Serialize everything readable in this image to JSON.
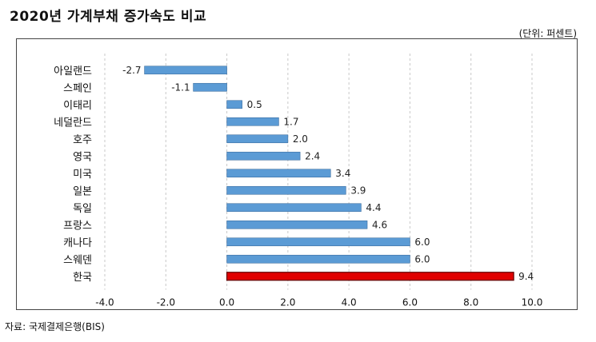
{
  "header": {
    "title": "2020년 가계부채 증가속도 비교",
    "unit": "(단위: 퍼센트)"
  },
  "footer": {
    "source": "자료: 국제결제은행(BIS)"
  },
  "colors": {
    "bar_default": "#5b9bd5",
    "bar_highlight": "#e00000"
  },
  "chart_data": {
    "type": "bar",
    "orientation": "horizontal",
    "categories": [
      "아일랜드",
      "스페인",
      "이태리",
      "네덜란드",
      "호주",
      "영국",
      "미국",
      "일본",
      "독일",
      "프랑스",
      "캐나다",
      "스웨덴",
      "한국"
    ],
    "values": [
      -2.7,
      -1.1,
      0.5,
      1.7,
      2.0,
      2.4,
      3.4,
      3.9,
      4.4,
      4.6,
      6.0,
      6.0,
      9.4
    ],
    "value_labels": [
      "-2.7",
      "-1.1",
      "0.5",
      "1.7",
      "2.0",
      "2.4",
      "3.4",
      "3.9",
      "4.4",
      "4.6",
      "6.0",
      "6.0",
      "9.4"
    ],
    "highlight": "한국",
    "xlim": [
      -4.0,
      10.0
    ],
    "xticks": [
      -4.0,
      -2.0,
      0.0,
      2.0,
      4.0,
      6.0,
      8.0,
      10.0
    ],
    "xtick_labels": [
      "-4.0",
      "-2.0",
      "0.0",
      "2.0",
      "4.0",
      "6.0",
      "8.0",
      "10.0"
    ],
    "grid": true,
    "title": "2020년 가계부채 증가속도 비교",
    "xlabel": "",
    "ylabel": ""
  }
}
